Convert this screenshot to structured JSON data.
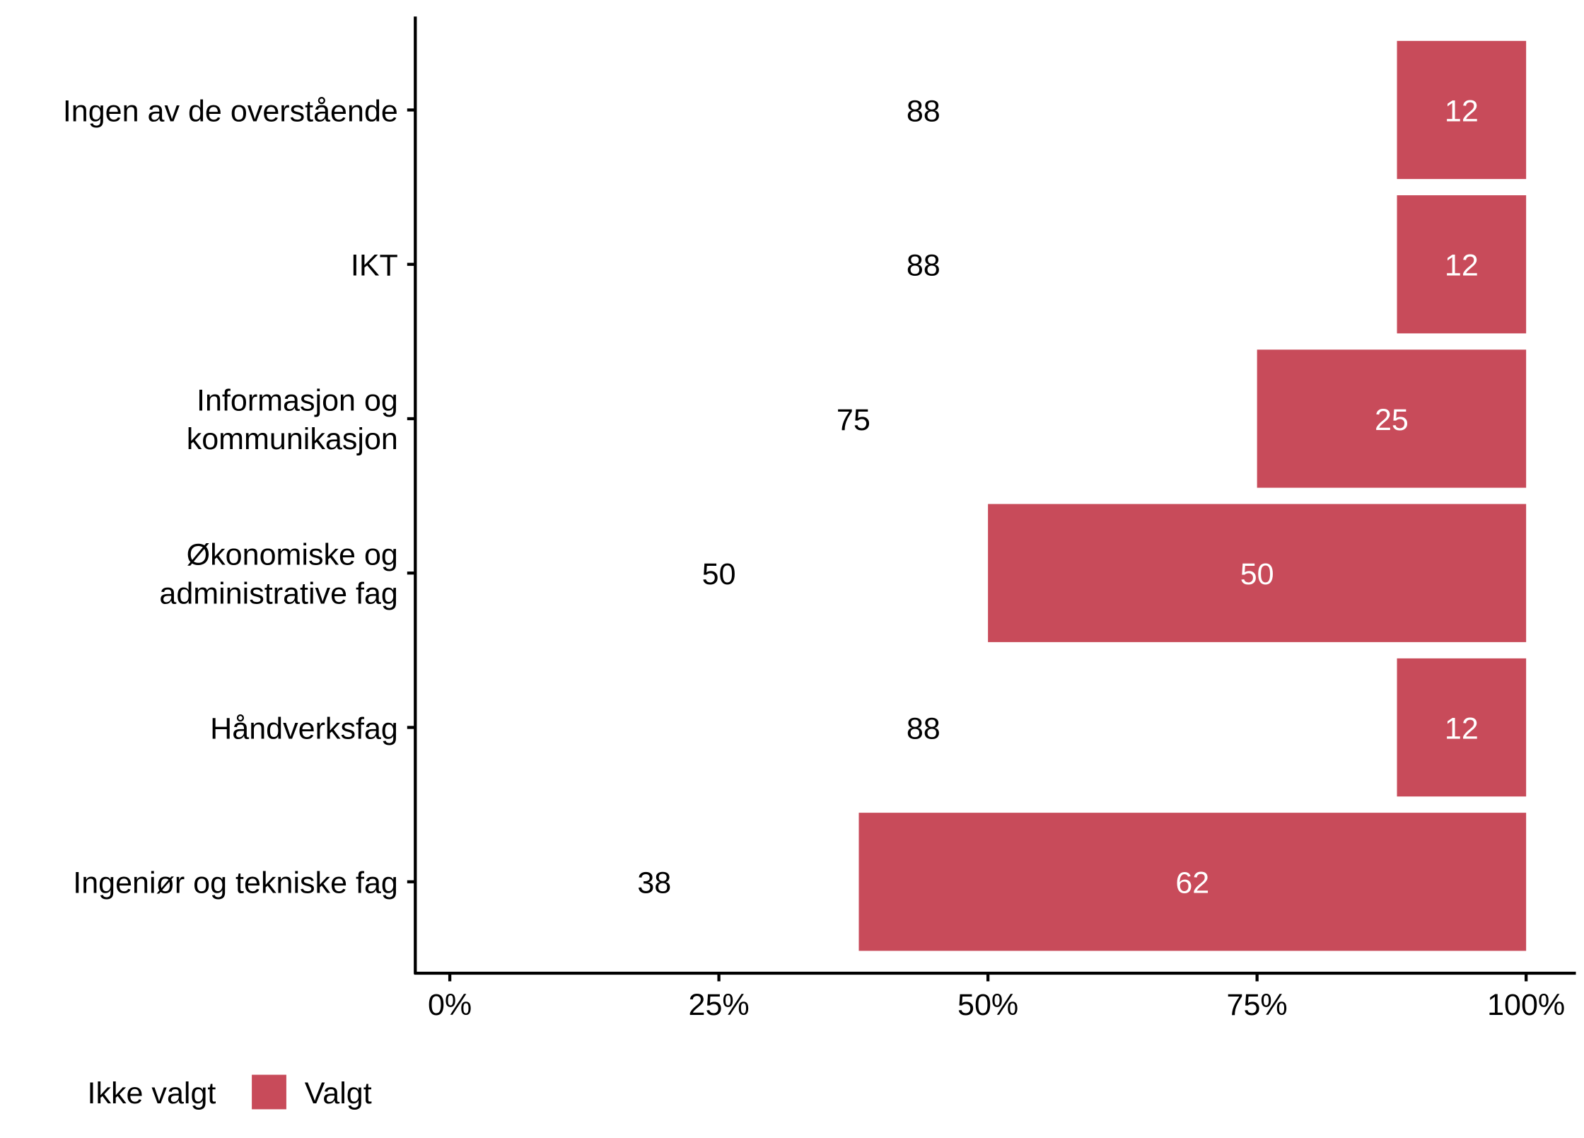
{
  "chart_data": {
    "type": "bar",
    "orientation": "horizontal",
    "stacked": "percent",
    "title": "",
    "xlabel": "",
    "ylabel": "",
    "xlim": [
      0,
      100
    ],
    "x_ticks": [
      "0%",
      "25%",
      "50%",
      "75%",
      "100%"
    ],
    "x_tick_values": [
      0,
      25,
      50,
      75,
      100
    ],
    "categories": [
      [
        "Ingen av de overstående"
      ],
      [
        "IKT"
      ],
      [
        "Informasjon og",
        "kommunikasjon"
      ],
      [
        "Økonomiske og",
        "administrative fag"
      ],
      [
        "Håndverksfag"
      ],
      [
        "Ingeniør og tekniske fag"
      ]
    ],
    "series": [
      {
        "name": "Ikke valgt",
        "color": "#FFFFFF",
        "label_color": "#000000",
        "values": [
          88,
          88,
          75,
          50,
          88,
          38
        ]
      },
      {
        "name": "Valgt",
        "color": "#C84B5A",
        "label_color": "#FFFFFF",
        "values": [
          12,
          12,
          25,
          50,
          12,
          62
        ]
      }
    ],
    "legend": {
      "position": "bottom-left",
      "entries": [
        "Ikke valgt",
        "Valgt"
      ]
    },
    "grid": false
  }
}
